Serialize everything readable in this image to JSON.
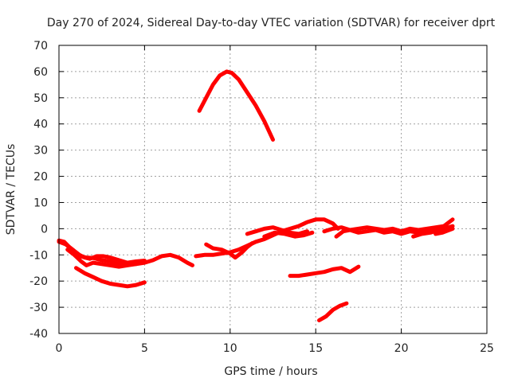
{
  "chart_data": {
    "type": "line",
    "title": "Day 270 of 2024, Sidereal Day-to-day VTEC variation (SDTVAR) for receiver dprt",
    "xlabel": "GPS time / hours",
    "ylabel": "SDTVAR / TECUs",
    "xlim": [
      0,
      25
    ],
    "ylim": [
      -40,
      70
    ],
    "xticks": [
      0,
      5,
      10,
      15,
      20,
      25
    ],
    "yticks": [
      -40,
      -30,
      -20,
      -10,
      0,
      10,
      20,
      30,
      40,
      50,
      60,
      70
    ],
    "grid": true,
    "series_color": "#ff0000",
    "series": [
      {
        "name": "arc-morning-main",
        "points": [
          [
            0,
            -4.5
          ],
          [
            0.3,
            -5
          ],
          [
            0.6,
            -7
          ],
          [
            0.9,
            -8.5
          ],
          [
            1.2,
            -10
          ],
          [
            1.5,
            -11
          ],
          [
            1.8,
            -11.5
          ],
          [
            2.2,
            -10.5
          ],
          [
            2.6,
            -10.5
          ],
          [
            3.0,
            -11
          ],
          [
            3.5,
            -12
          ],
          [
            4.0,
            -13
          ],
          [
            4.5,
            -13.5
          ],
          [
            5.0,
            -13
          ],
          [
            5.5,
            -12
          ],
          [
            6.0,
            -10.5
          ],
          [
            6.5,
            -10
          ],
          [
            7.0,
            -11
          ],
          [
            7.5,
            -13
          ],
          [
            7.8,
            -14
          ]
        ]
      },
      {
        "name": "arc-morning-upper",
        "points": [
          [
            0,
            -5
          ],
          [
            0.4,
            -6
          ],
          [
            0.8,
            -8
          ],
          [
            1.2,
            -10.5
          ],
          [
            1.6,
            -11
          ],
          [
            2.0,
            -11.2
          ],
          [
            2.5,
            -12
          ],
          [
            3.0,
            -12.5
          ],
          [
            3.5,
            -13.5
          ],
          [
            4.0,
            -13
          ],
          [
            4.5,
            -12.5
          ],
          [
            5.0,
            -12.2
          ]
        ]
      },
      {
        "name": "arc-morning-lower",
        "points": [
          [
            0.5,
            -8
          ],
          [
            0.9,
            -10
          ],
          [
            1.3,
            -12.5
          ],
          [
            1.6,
            -14
          ],
          [
            2.0,
            -13
          ],
          [
            2.5,
            -13.5
          ],
          [
            3.0,
            -14
          ],
          [
            3.5,
            -14.5
          ],
          [
            4.0,
            -14
          ],
          [
            4.5,
            -13.5
          ]
        ]
      },
      {
        "name": "arc-lower-early",
        "points": [
          [
            1.0,
            -15
          ],
          [
            1.5,
            -17
          ],
          [
            2.0,
            -18.5
          ],
          [
            2.5,
            -20
          ],
          [
            3.0,
            -21
          ],
          [
            3.5,
            -21.5
          ],
          [
            4.0,
            -22
          ],
          [
            4.5,
            -21.5
          ],
          [
            5.0,
            -20.5
          ]
        ]
      },
      {
        "name": "arc-high-peak",
        "points": [
          [
            8.2,
            45
          ],
          [
            8.6,
            50
          ],
          [
            9.0,
            55
          ],
          [
            9.4,
            58.5
          ],
          [
            9.8,
            60
          ],
          [
            10.1,
            59.5
          ],
          [
            10.5,
            57
          ],
          [
            11.0,
            52
          ],
          [
            11.5,
            47
          ],
          [
            12.0,
            41
          ],
          [
            12.5,
            34
          ]
        ]
      },
      {
        "name": "arc-midday",
        "points": [
          [
            8.0,
            -10.5
          ],
          [
            8.5,
            -10
          ],
          [
            9.0,
            -10
          ],
          [
            9.5,
            -9.5
          ],
          [
            10.0,
            -9
          ],
          [
            10.5,
            -8
          ],
          [
            11.0,
            -6.5
          ],
          [
            11.5,
            -5
          ],
          [
            12.0,
            -4
          ],
          [
            12.5,
            -2.5
          ],
          [
            13.0,
            -1
          ],
          [
            13.5,
            0
          ],
          [
            14.0,
            1
          ],
          [
            14.5,
            2.5
          ],
          [
            15.0,
            3.5
          ],
          [
            15.5,
            3.5
          ],
          [
            16.0,
            2
          ],
          [
            16.3,
            0
          ]
        ]
      },
      {
        "name": "arc-midday-dip",
        "points": [
          [
            8.6,
            -6
          ],
          [
            9.0,
            -7.5
          ],
          [
            9.5,
            -8
          ],
          [
            10.0,
            -9.5
          ],
          [
            10.3,
            -11
          ],
          [
            10.7,
            -9
          ],
          [
            11.0,
            -7
          ],
          [
            11.3,
            -5.5
          ]
        ]
      },
      {
        "name": "arc-midday-b",
        "points": [
          [
            11.0,
            -2
          ],
          [
            11.5,
            -1
          ],
          [
            12.0,
            0
          ],
          [
            12.5,
            0.5
          ],
          [
            13.0,
            -0.5
          ],
          [
            13.5,
            -1.5
          ],
          [
            14.0,
            -2
          ],
          [
            14.5,
            -1
          ]
        ]
      },
      {
        "name": "arc-midday-c",
        "points": [
          [
            12.0,
            -3
          ],
          [
            12.6,
            -1.5
          ],
          [
            13.2,
            -2
          ],
          [
            13.8,
            -3
          ],
          [
            14.3,
            -2.5
          ],
          [
            14.8,
            -1.5
          ]
        ]
      },
      {
        "name": "arc-afternoon",
        "points": [
          [
            15.5,
            -1
          ],
          [
            16.0,
            0
          ],
          [
            16.5,
            0.5
          ],
          [
            17.0,
            -0.5
          ],
          [
            17.5,
            0
          ],
          [
            18.0,
            0.5
          ],
          [
            18.5,
            0
          ],
          [
            19.0,
            -0.5
          ],
          [
            19.5,
            0
          ],
          [
            20.0,
            -1
          ],
          [
            20.5,
            0
          ],
          [
            21.0,
            -0.5
          ],
          [
            21.5,
            0
          ],
          [
            22.0,
            0.5
          ],
          [
            22.5,
            1
          ]
        ]
      },
      {
        "name": "arc-afternoon-b",
        "points": [
          [
            16.2,
            -3
          ],
          [
            16.6,
            -1
          ],
          [
            17.0,
            -0.5
          ],
          [
            17.5,
            -1.5
          ],
          [
            18.0,
            -1
          ],
          [
            18.5,
            -0.5
          ],
          [
            19.0,
            -1.5
          ],
          [
            19.5,
            -1
          ],
          [
            20.0,
            -2
          ],
          [
            20.5,
            -1
          ],
          [
            21.0,
            -1.5
          ],
          [
            21.5,
            -1
          ],
          [
            22.0,
            -0.5
          ],
          [
            22.5,
            0
          ],
          [
            23.0,
            1
          ]
        ]
      },
      {
        "name": "arc-afternoon-c",
        "points": [
          [
            20.7,
            -3
          ],
          [
            21.2,
            -2
          ],
          [
            21.7,
            -1.5
          ],
          [
            22.2,
            -0.5
          ],
          [
            22.6,
            1.5
          ],
          [
            23.0,
            3.5
          ]
        ]
      },
      {
        "name": "arc-afternoon-d",
        "points": [
          [
            22.0,
            -2
          ],
          [
            22.4,
            -1.5
          ],
          [
            22.8,
            -0.5
          ],
          [
            23.0,
            0
          ]
        ]
      },
      {
        "name": "arc-lower-afternoon",
        "points": [
          [
            13.5,
            -18
          ],
          [
            14.0,
            -18
          ],
          [
            14.5,
            -17.5
          ],
          [
            15.0,
            -17
          ],
          [
            15.5,
            -16.5
          ],
          [
            16.0,
            -15.5
          ],
          [
            16.5,
            -15
          ],
          [
            17.0,
            -16.5
          ],
          [
            17.5,
            -14.5
          ]
        ]
      },
      {
        "name": "arc-lowest",
        "points": [
          [
            15.2,
            -35
          ],
          [
            15.6,
            -33.5
          ],
          [
            16.0,
            -31
          ],
          [
            16.4,
            -29.5
          ],
          [
            16.8,
            -28.5
          ]
        ]
      }
    ]
  }
}
